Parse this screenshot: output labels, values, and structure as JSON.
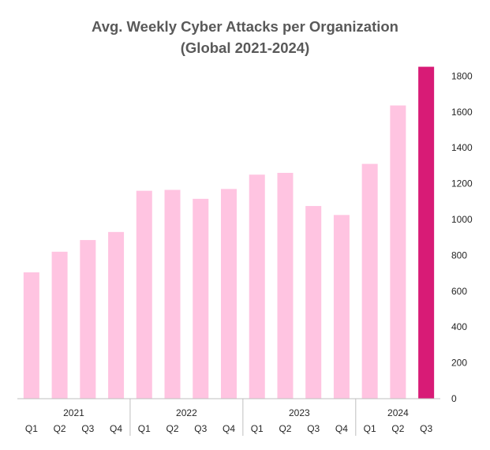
{
  "chart_data": {
    "type": "bar",
    "title": "Avg. Weekly Cyber Attacks per Organization",
    "subtitle": "(Global 2021-2024)",
    "categories": [
      "Q1",
      "Q2",
      "Q3",
      "Q4",
      "Q1",
      "Q2",
      "Q3",
      "Q4",
      "Q1",
      "Q2",
      "Q3",
      "Q4",
      "Q1",
      "Q2",
      "Q3"
    ],
    "years": [
      {
        "label": "2021",
        "quarters": 4
      },
      {
        "label": "2022",
        "quarters": 4
      },
      {
        "label": "2023",
        "quarters": 4
      },
      {
        "label": "2024",
        "quarters": 3
      }
    ],
    "values": [
      705,
      820,
      885,
      930,
      1160,
      1165,
      1115,
      1170,
      1250,
      1260,
      1075,
      1025,
      1310,
      1636,
      1852
    ],
    "ylim": [
      0,
      1850
    ],
    "yticks": [
      "0",
      "200",
      "400",
      "600",
      "800",
      "1000",
      "1200",
      "1400",
      "1600",
      "1800"
    ],
    "grid": false,
    "colors": {
      "bar": "#ffc4e1",
      "highlight": "#d81b76",
      "axis": "#bfbfbf"
    },
    "highlight_index": 14
  }
}
